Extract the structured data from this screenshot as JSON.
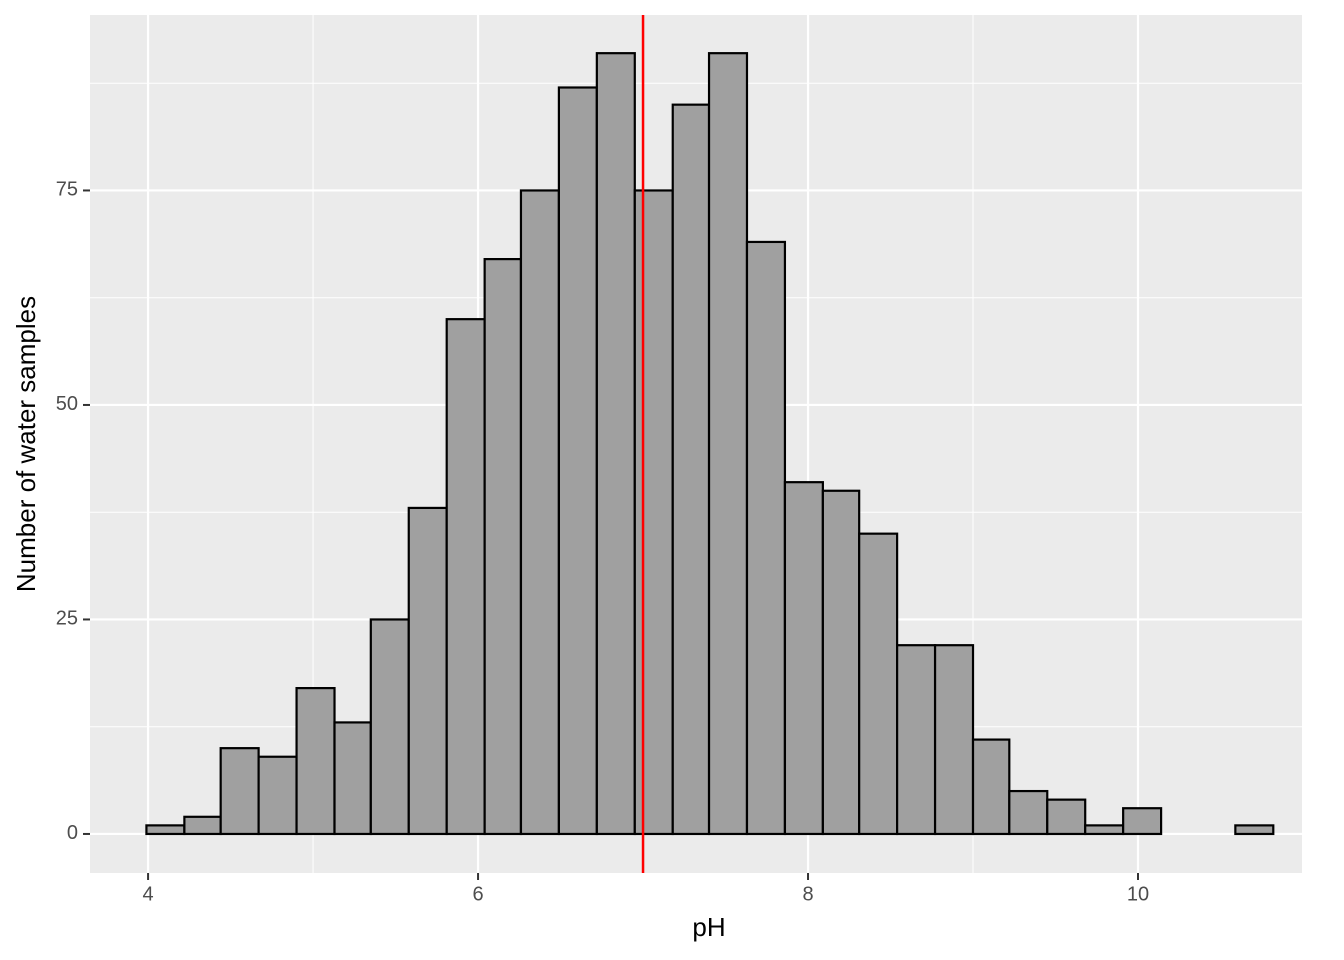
{
  "chart_data": {
    "type": "histogram",
    "xlabel": "pH",
    "ylabel": "Number of water samples",
    "bins": [
      3.99,
      4.22,
      4.44,
      4.67,
      4.9,
      5.13,
      5.35,
      5.58,
      5.81,
      6.04,
      6.26,
      6.49,
      6.72,
      6.95,
      7.18,
      7.4,
      7.63,
      7.86,
      8.09,
      8.31,
      8.54,
      8.77,
      9.0,
      9.22,
      9.45,
      9.68,
      9.91,
      10.14,
      10.36,
      10.59,
      10.82
    ],
    "values": [
      1,
      2,
      10,
      9,
      17,
      13,
      25,
      38,
      60,
      67,
      75,
      87,
      91,
      75,
      85,
      91,
      69,
      41,
      40,
      35,
      22,
      22,
      11,
      5,
      4,
      1,
      3,
      0,
      0,
      1
    ],
    "color": "#a0a0a0",
    "edge_color": "#000000",
    "xlim": [
      3.648,
      10.994
    ],
    "ylim": [
      -4.55,
      95.45
    ],
    "xticks": [
      4,
      6,
      8,
      10
    ],
    "yticks": [
      0,
      25,
      50,
      75
    ],
    "x_minor_ticks": [
      5,
      7,
      9
    ],
    "y_minor_ticks": [
      12.5,
      37.5,
      62.5,
      87.5
    ],
    "grid": true,
    "vline": 7,
    "vline_color": "#ff0000"
  }
}
